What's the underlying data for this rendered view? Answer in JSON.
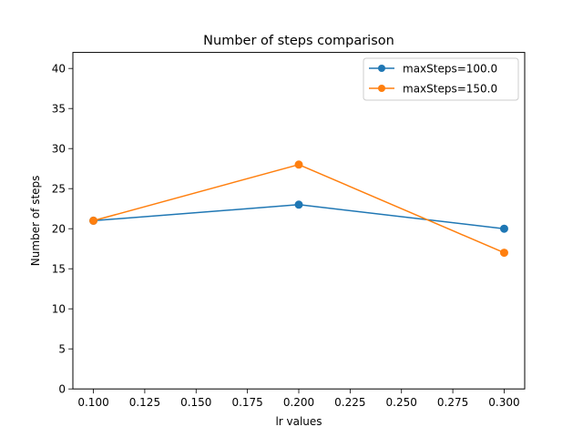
{
  "chart_data": {
    "type": "line",
    "title": "Number of steps comparison",
    "xlabel": "lr values",
    "ylabel": "Number of steps",
    "x": [
      0.1,
      0.2,
      0.3
    ],
    "xlim": [
      0.09,
      0.31
    ],
    "ylim": [
      0,
      42
    ],
    "x_ticks": [
      "0.100",
      "0.125",
      "0.150",
      "0.175",
      "0.200",
      "0.225",
      "0.250",
      "0.275",
      "0.300"
    ],
    "y_ticks": [
      "0",
      "5",
      "10",
      "15",
      "20",
      "25",
      "30",
      "35",
      "40"
    ],
    "grid": false,
    "legend_position": "top-right",
    "series": [
      {
        "name": "maxSteps=100.0",
        "color": "#1f77b4",
        "marker": "circle",
        "values": [
          21,
          23,
          20
        ]
      },
      {
        "name": "maxSteps=150.0",
        "color": "#ff7f0e",
        "marker": "circle",
        "values": [
          21,
          28,
          17
        ]
      }
    ]
  }
}
